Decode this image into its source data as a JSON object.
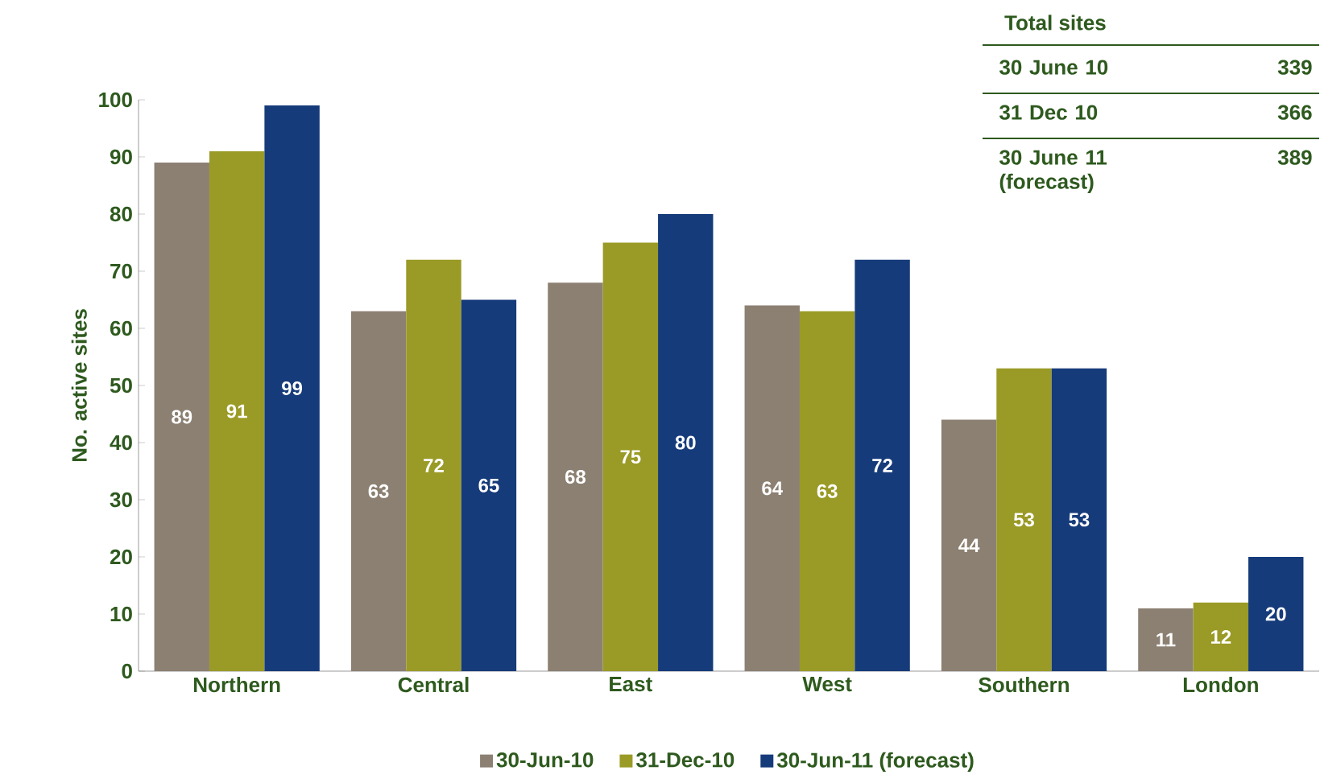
{
  "chart_data": {
    "type": "bar",
    "ylabel": "No. active sites",
    "categories": [
      "Northern",
      "Central",
      "East",
      "West",
      "Southern",
      "London"
    ],
    "series": [
      {
        "name": "30-Jun-10",
        "color": "#8c8072",
        "values": [
          89,
          63,
          68,
          64,
          44,
          11
        ]
      },
      {
        "name": "31-Dec-10",
        "color": "#9a9a26",
        "values": [
          91,
          72,
          75,
          63,
          53,
          12
        ]
      },
      {
        "name": "30-Jun-11 (forecast)",
        "color": "#163b7a",
        "values": [
          99,
          65,
          80,
          72,
          53,
          20
        ]
      }
    ],
    "ylim": [
      0,
      100
    ],
    "yticks": [
      0,
      10,
      20,
      30,
      40,
      50,
      60,
      70,
      80,
      90,
      100
    ],
    "data_labels": true,
    "legend": "bottom",
    "grid": false,
    "annotations": [
      "Total sites",
      "30 June 10",
      "339",
      "31 Dec 10",
      "366",
      "30 June 11 (forecast)",
      "389"
    ]
  }
}
